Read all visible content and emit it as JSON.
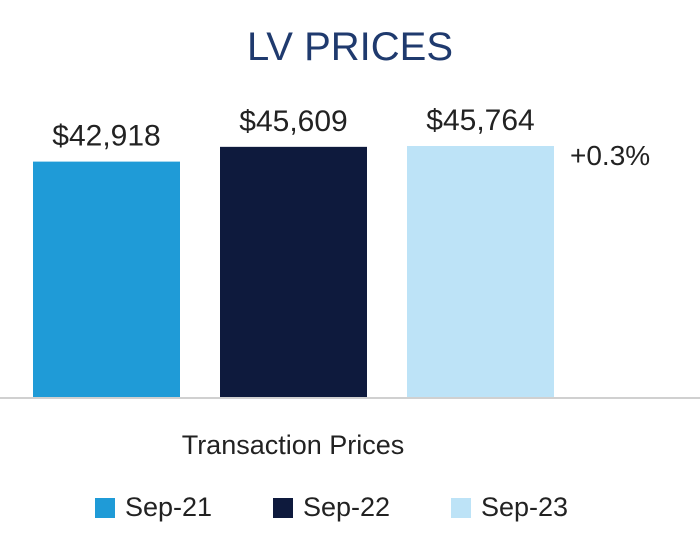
{
  "chart_data": {
    "type": "bar",
    "title": "LV PRICES",
    "xlabel": "Transaction Prices",
    "ylabel": "",
    "categories": [
      "Transaction Prices"
    ],
    "series": [
      {
        "name": "Sep-21",
        "value": 42918,
        "label": "$42,918",
        "color": "#1f9bd7"
      },
      {
        "name": "Sep-22",
        "value": 45609,
        "label": "$45,609",
        "color": "#0e1a3d"
      },
      {
        "name": "Sep-23",
        "value": 45764,
        "label": "$45,764",
        "color": "#bde3f7"
      }
    ],
    "annotation": "+0.3%",
    "ylim": [
      0,
      45764
    ],
    "grid": false,
    "legend_position": "bottom"
  },
  "colors": {
    "title": "#1f3a6e",
    "text": "#222222",
    "axis": "#d0d0d0"
  }
}
